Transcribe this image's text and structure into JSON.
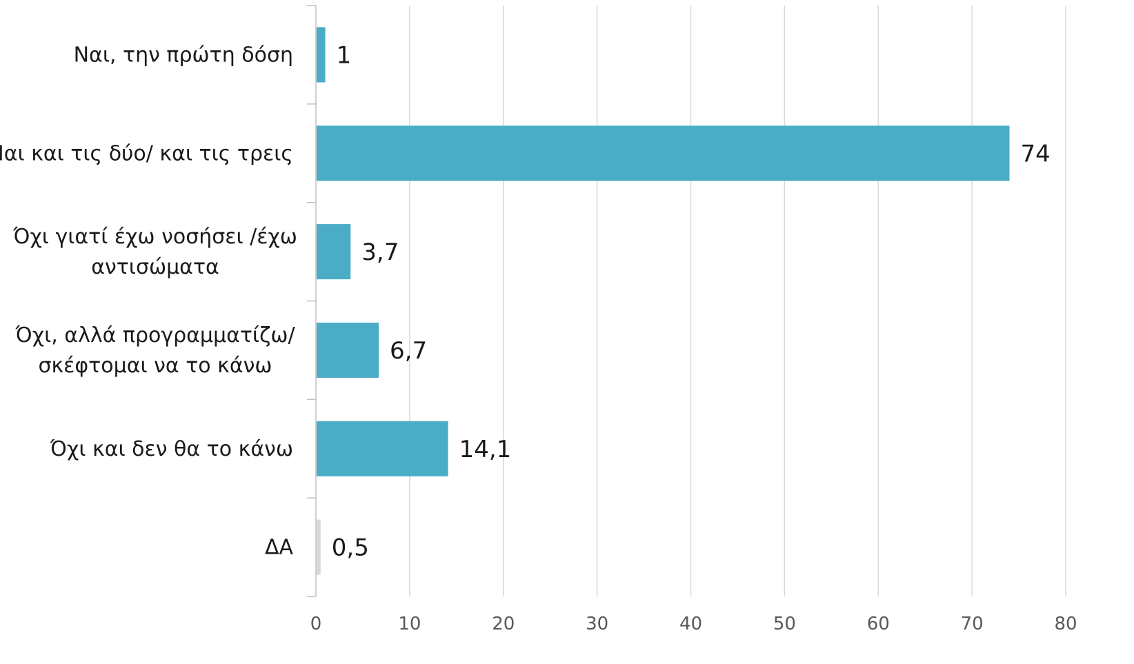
{
  "chart_data": {
    "type": "bar",
    "orientation": "horizontal",
    "title": "",
    "xlabel": "",
    "ylabel": "",
    "xlim": [
      0,
      80
    ],
    "x_ticks": [
      0,
      10,
      20,
      30,
      40,
      50,
      60,
      70,
      80
    ],
    "grid": "vertical",
    "legend": "none",
    "categories": [
      {
        "lines": [
          "Ναι, την πρώτη δόση"
        ]
      },
      {
        "lines": [
          "Ναι και τις δύο/ και τις τρεις"
        ]
      },
      {
        "lines": [
          "Όχι γιατί έχω νοσήσει /έχω",
          "αντισώματα"
        ]
      },
      {
        "lines": [
          "Όχι, αλλά προγραμματίζω/",
          "σκέφτομαι να το κάνω"
        ]
      },
      {
        "lines": [
          "Όχι και δεν θα το κάνω"
        ]
      },
      {
        "lines": [
          "ΔΑ"
        ]
      }
    ],
    "values": [
      1,
      74,
      3.7,
      6.7,
      14.1,
      0.5
    ],
    "value_labels": [
      "1",
      "74",
      "3,7",
      "6,7",
      "14,1",
      "0,5"
    ],
    "bar_colors": [
      "#4BACC6",
      "#4BACC6",
      "#4BACC6",
      "#4BACC6",
      "#4BACC6",
      "#D9D9D9"
    ],
    "gridline_color": "#D9D9D9",
    "axis_color": "#BFBFBF"
  }
}
